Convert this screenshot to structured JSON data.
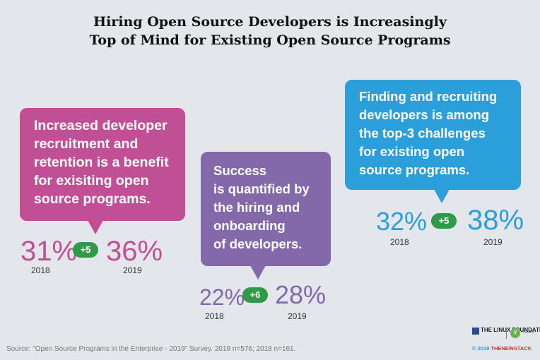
{
  "title": {
    "line1": "Hiring Open Source Developers is Increasingly",
    "line2": "Top of Mind for Existing Open Source Programs"
  },
  "chart_data": {
    "type": "table",
    "title": "Hiring Open Source Developers is Increasingly Top of Mind for Existing Open Source Programs",
    "categories": [
      "2018",
      "2019"
    ],
    "items": [
      {
        "label_lines": [
          "Increased developer",
          "recruitment and",
          "retention is a benefit",
          "for exisiting open",
          "source programs."
        ],
        "values": [
          "31%",
          "36%"
        ],
        "years": [
          "2018",
          "2019"
        ],
        "change": "+5",
        "color": "#c04f96"
      },
      {
        "label_lines": [
          "Success",
          "is quantified by",
          "the hiring and",
          "onboarding",
          "of developers."
        ],
        "values": [
          "22%",
          "28%"
        ],
        "years": [
          "2018",
          "2019"
        ],
        "change": "+6",
        "color": "#8469aa"
      },
      {
        "label_lines": [
          "Finding and recruiting",
          "developers is among",
          "the top-3 challenges",
          "for existing open",
          "source programs."
        ],
        "values": [
          "32%",
          "38%"
        ],
        "years": [
          "2018",
          "2019"
        ],
        "change": "+5",
        "color": "#2a9fd9"
      }
    ]
  },
  "source": "Source: \"Open Source Programs in the Enterprise - 2019\" Survey. 2019 n=576; 2018 n=161.",
  "logos": {
    "linux": "THE LINUX FOUNDATION",
    "todo": "TODO",
    "copyright": "© 2019",
    "tns": "THENEWSTACK"
  }
}
